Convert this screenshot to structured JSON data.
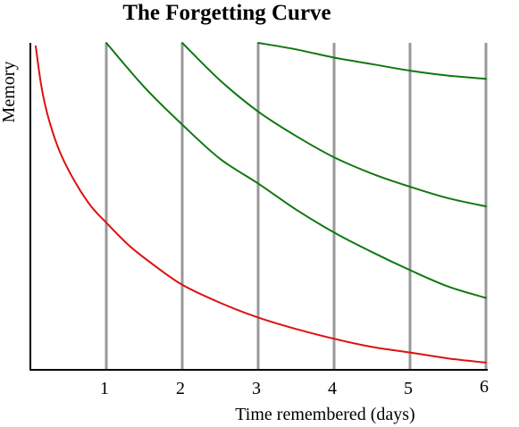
{
  "chart_data": {
    "type": "line",
    "title": "The Forgetting Curve",
    "xlabel": "Time remembered (days)",
    "ylabel": "Memory",
    "xlim": [
      0,
      6
    ],
    "ylim": [
      0,
      100
    ],
    "x_ticks": [
      1,
      2,
      3,
      4,
      5,
      6
    ],
    "vertical_gridlines": true,
    "horizontal_gridlines": false,
    "colors": {
      "forgetting": "#dd1111",
      "review": "#117711",
      "gridline": "#999999",
      "axis": "#000000"
    },
    "series": [
      {
        "color": "#dd1111",
        "x": [
          0.07,
          0.15,
          0.25,
          0.4,
          0.6,
          0.8,
          1.0,
          1.3,
          1.6,
          2.0,
          2.5,
          3.0,
          3.5,
          4.0,
          4.5,
          5.0,
          5.5,
          6.0
        ],
        "y": [
          99,
          86,
          76,
          66,
          57,
          50,
          45,
          38,
          32.5,
          26,
          20.5,
          16,
          12.5,
          9.5,
          7,
          5.3,
          3.5,
          2.2
        ]
      },
      {
        "color": "#117711",
        "x": [
          1.0,
          1.5,
          2.0,
          2.5,
          3.0,
          3.5,
          4.0,
          4.5,
          5.0,
          5.5,
          6.0
        ],
        "y": [
          100,
          86.5,
          75,
          64.5,
          57,
          49,
          42,
          36,
          30.5,
          25.5,
          22
        ]
      },
      {
        "color": "#117711",
        "x": [
          2.0,
          2.5,
          3.0,
          3.5,
          4.0,
          4.5,
          5.0,
          5.5,
          6.0
        ],
        "y": [
          100,
          88.5,
          79,
          71.5,
          65,
          60,
          56,
          52.5,
          50
        ]
      },
      {
        "color": "#117711",
        "x": [
          3.0,
          3.5,
          4.0,
          4.5,
          5.0,
          5.5,
          6.0
        ],
        "y": [
          100,
          98,
          95.5,
          93.5,
          91.5,
          90,
          89
        ]
      }
    ]
  }
}
